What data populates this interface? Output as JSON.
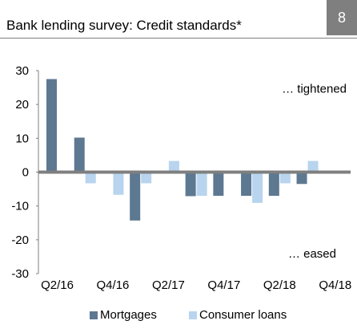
{
  "header": {
    "title": "Bank lending survey: Credit standards*",
    "badge": "8"
  },
  "colors": {
    "mortgages": "#5d7891",
    "consumer_loans": "#b8d4ee",
    "axis": "#7f7f7f"
  },
  "chart_data": {
    "type": "bar",
    "title": "Bank lending survey: Credit standards*",
    "categories": [
      "Q2/16",
      "Q3/16",
      "Q4/16",
      "Q1/17",
      "Q2/17",
      "Q3/17",
      "Q4/17",
      "Q1/18",
      "Q2/18",
      "Q3/18",
      "Q4/18"
    ],
    "x_tick_labels": [
      "Q2/16",
      "Q4/16",
      "Q2/17",
      "Q4/17",
      "Q2/18",
      "Q4/18"
    ],
    "series": [
      {
        "name": "Mortgages",
        "values": [
          27.5,
          10.2,
          0,
          -14.3,
          0,
          -7.1,
          -7.0,
          -7.0,
          -7.0,
          -3.5,
          0
        ]
      },
      {
        "name": "Consumer loans",
        "values": [
          0,
          -3.3,
          -6.7,
          -3.3,
          3.3,
          -7.0,
          0,
          -9.1,
          -3.3,
          3.3,
          0
        ]
      }
    ],
    "ylim": [
      -30,
      30
    ],
    "yticks": [
      30,
      20,
      10,
      0,
      -10,
      -20,
      -30
    ],
    "annotations": {
      "top": "… tightened",
      "bottom": "… eased"
    },
    "grid": false,
    "legend": "bottom"
  }
}
